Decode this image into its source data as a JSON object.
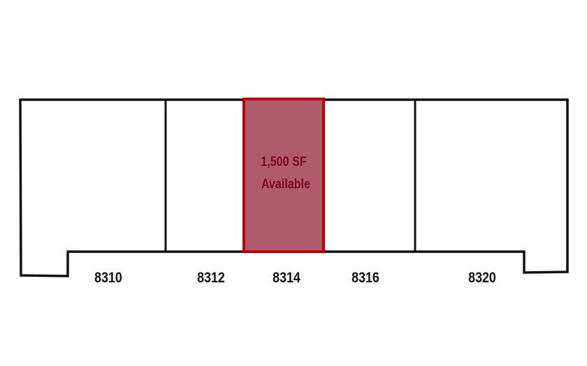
{
  "units": [
    {
      "number": "8310",
      "available": false
    },
    {
      "number": "8312",
      "available": false
    },
    {
      "number": "8314",
      "available": true
    },
    {
      "number": "8316",
      "available": false
    },
    {
      "number": "8320",
      "available": false
    }
  ],
  "available_unit": {
    "size": "1,500 SF",
    "status": "Available"
  },
  "colors": {
    "outline": "#111111",
    "highlight_fill": "#b05a6e",
    "highlight_stroke": "#c00000",
    "highlight_text": "#7a0a1e"
  }
}
